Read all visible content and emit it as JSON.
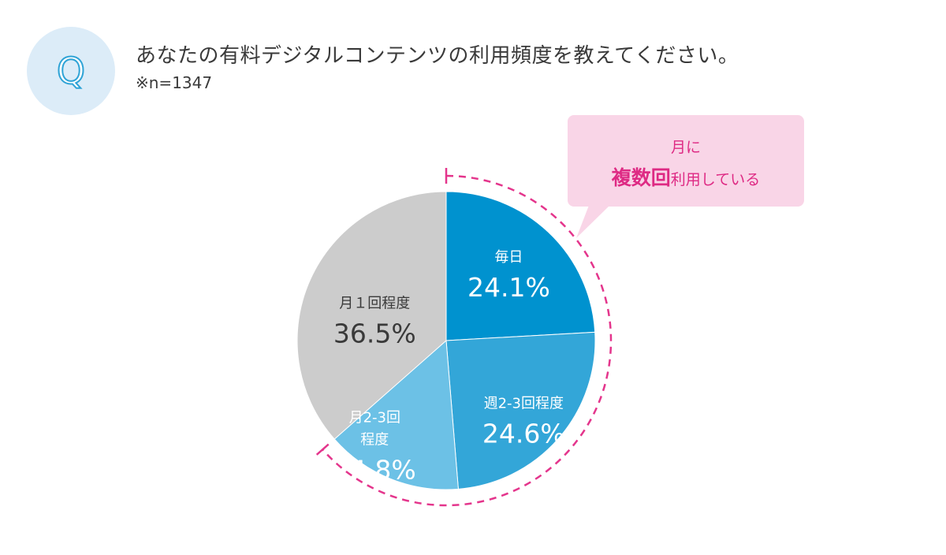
{
  "header": {
    "badge_letter": "Q",
    "question": "あなたの有料デジタルコンテンツの利用頻度を教えてください。",
    "sample_note": "※n=1347"
  },
  "callout": {
    "line1": "月に",
    "line2_bold": "複数回",
    "line2_rest": "利用している"
  },
  "chart_data": {
    "type": "pie",
    "start": "12 o'clock",
    "direction": "clockwise",
    "slices": [
      {
        "label": "毎日",
        "value": 24.1,
        "value_label": "24.1%",
        "color": "#0092cf",
        "label_color": "#ffffff"
      },
      {
        "label": "週2-3回程度",
        "value": 24.6,
        "value_label": "24.6%",
        "color": "#33a6d8",
        "label_color": "#ffffff"
      },
      {
        "label_lines": [
          "月2-3回",
          "程度"
        ],
        "value": 14.8,
        "value_label": "14.8%",
        "color": "#6cc1e6",
        "label_color": "#ffffff"
      },
      {
        "label": "月１回程度",
        "value": 36.5,
        "value_label": "36.5%",
        "color": "#cccccc",
        "label_color": "#3a3a3a"
      }
    ],
    "highlight": {
      "covers": [
        "毎日",
        "週2-3回程度",
        "月2-3回程度"
      ],
      "style": "dashed-arc",
      "color": "#e4358c"
    }
  }
}
